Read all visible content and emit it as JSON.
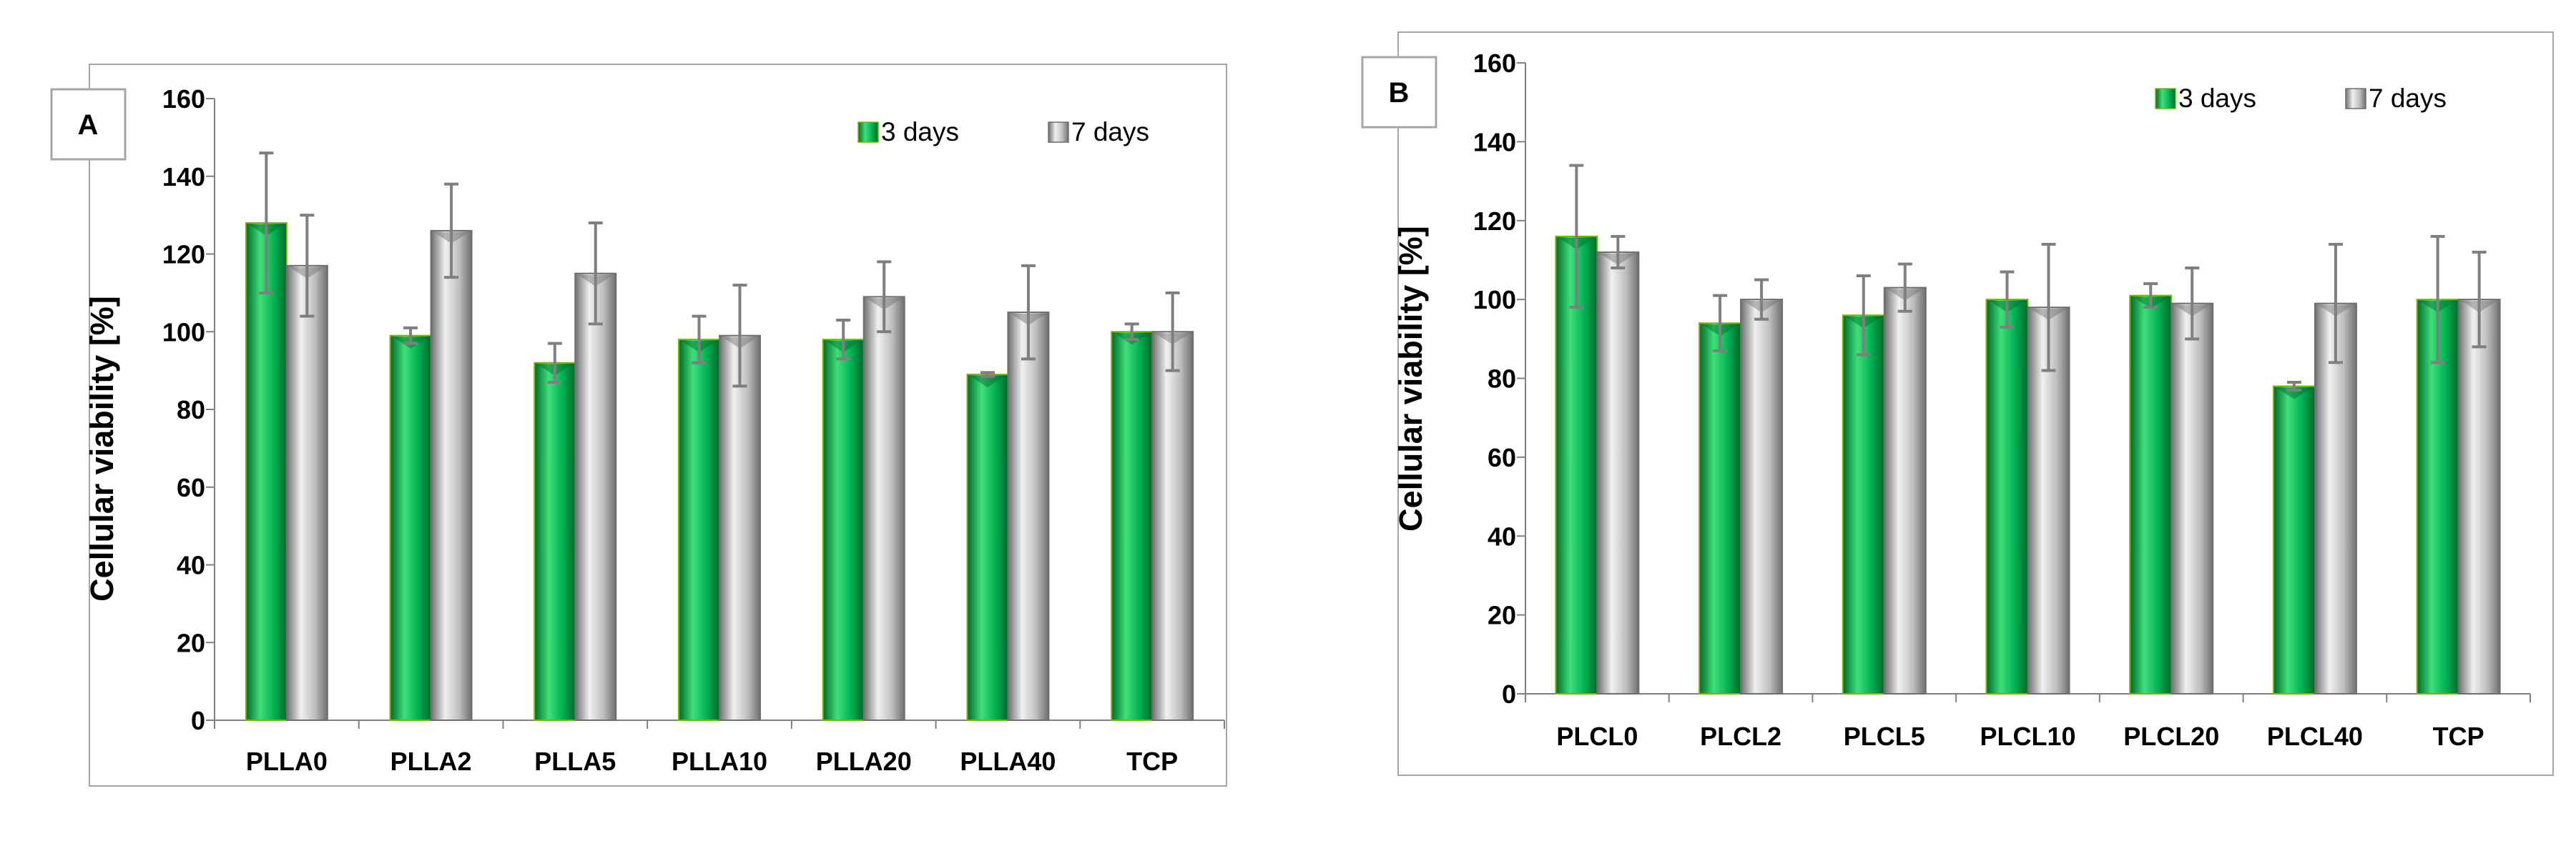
{
  "colors": {
    "green_light": "#3ee07a",
    "green_mid": "#00b050",
    "green_dark": "#00672a",
    "green_edge": "#7ab800",
    "gray_light": "#f0f0f0",
    "gray_mid": "#bdbdbd",
    "gray_dark": "#6e6e6e",
    "error_bar": "#7f7f7f",
    "axis": "#808080",
    "frame": "#a6a6a6"
  },
  "chart_data": [
    {
      "panel": "A",
      "type": "bar",
      "ylabel": "Cellular viability [%]",
      "xlabel": "",
      "ylim": [
        0,
        160
      ],
      "yticks": [
        0,
        20,
        40,
        60,
        80,
        100,
        120,
        140,
        160
      ],
      "categories": [
        "PLLA0",
        "PLLA2",
        "PLLA5",
        "PLLA10",
        "PLLA20",
        "PLLA40",
        "TCP"
      ],
      "legend_position": "top-right",
      "series": [
        {
          "name": "3 days",
          "values": [
            128,
            99,
            92,
            98,
            98,
            89,
            100
          ],
          "errors": [
            18,
            2,
            5,
            6,
            5,
            0.5,
            2
          ]
        },
        {
          "name": "7 days",
          "values": [
            117,
            126,
            115,
            99,
            109,
            105,
            100
          ],
          "errors": [
            13,
            12,
            13,
            13,
            9,
            12,
            10
          ]
        }
      ]
    },
    {
      "panel": "B",
      "type": "bar",
      "ylabel": "Cellular viability [%]",
      "xlabel": "",
      "ylim": [
        0,
        160
      ],
      "yticks": [
        0,
        20,
        40,
        60,
        80,
        100,
        120,
        140,
        160
      ],
      "categories": [
        "PLCL0",
        "PLCL2",
        "PLCL5",
        "PLCL10",
        "PLCL20",
        "PLCL40",
        "TCP"
      ],
      "legend_position": "top-right",
      "series": [
        {
          "name": "3 days",
          "values": [
            116,
            94,
            96,
            100,
            101,
            78,
            100
          ],
          "errors": [
            18,
            7,
            10,
            7,
            3,
            1,
            16
          ]
        },
        {
          "name": "7 days",
          "values": [
            112,
            100,
            103,
            98,
            99,
            99,
            100
          ],
          "errors": [
            4,
            5,
            6,
            16,
            9,
            15,
            12
          ]
        }
      ]
    }
  ]
}
